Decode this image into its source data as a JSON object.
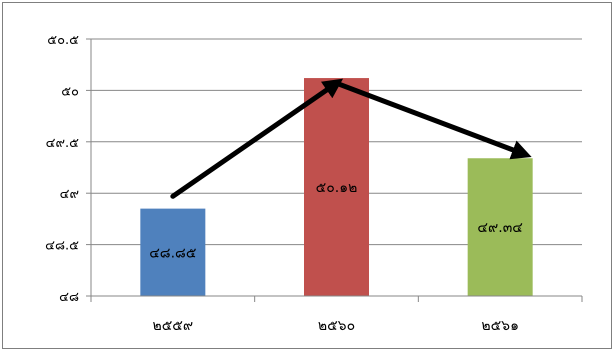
{
  "chart_data": {
    "type": "bar",
    "categories": [
      "๒๕๕๙",
      "๒๕๖๐",
      "๒๕๖๑"
    ],
    "values": [
      48.85,
      50.12,
      49.34
    ],
    "data_labels": [
      "๔๘.๘๕",
      "๕๐.๑๒",
      "๔๙.๓๔"
    ],
    "colors": [
      "#4f81bd",
      "#c0504d",
      "#9bbb59"
    ],
    "ylim": [
      48,
      50.5
    ],
    "y_ticks": [
      48,
      48.5,
      49,
      49.5,
      50,
      50.5
    ],
    "y_tick_labels": [
      "๔๘",
      "๔๘.๕",
      "๔๙",
      "๔๙.๕",
      "๕๐",
      "๕๐.๕"
    ],
    "grid": true,
    "legend": "none",
    "arrows": [
      {
        "from": [
          0,
          48.97
        ],
        "to": [
          1,
          50.07
        ]
      },
      {
        "from": [
          1,
          50.07
        ],
        "to": [
          2,
          49.38
        ]
      }
    ]
  }
}
